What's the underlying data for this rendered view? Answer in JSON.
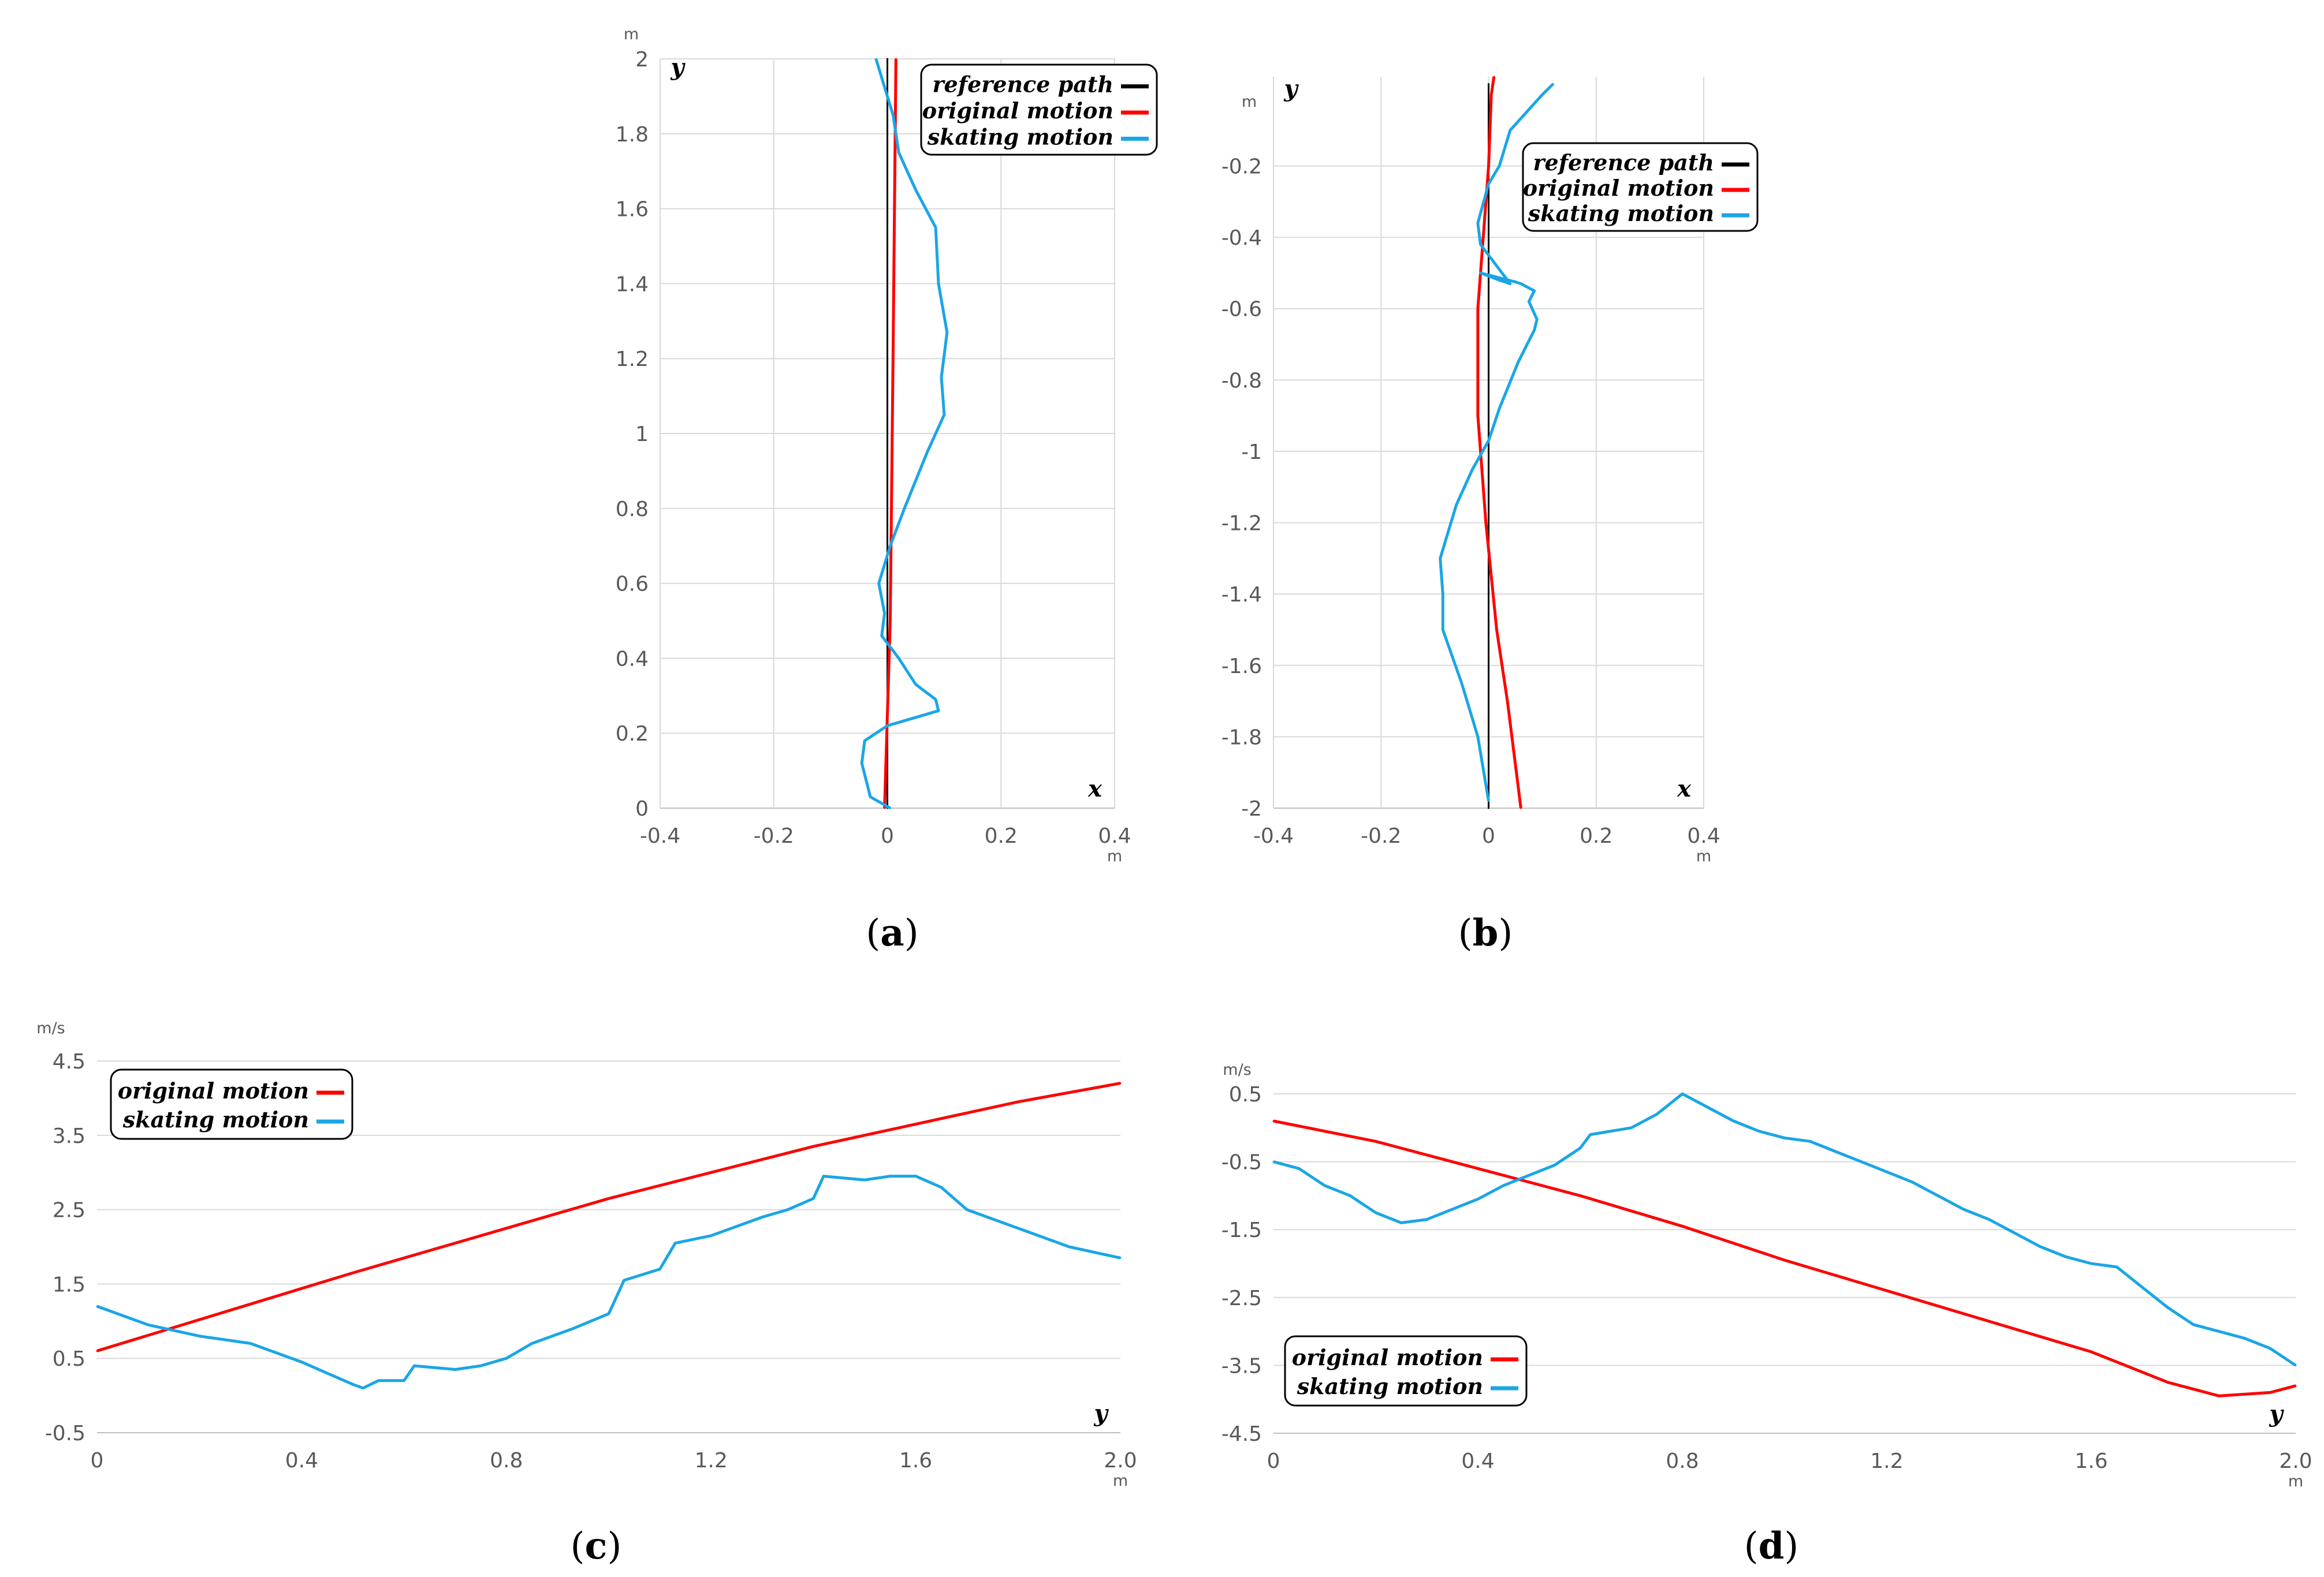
{
  "colors": {
    "reference": "#000000",
    "original": "#ff0000",
    "skating": "#1aa6e6",
    "grid": "#d9d9d9",
    "tick": "#595959"
  },
  "chart_data": [
    {
      "id": "a",
      "type": "line",
      "label": "a",
      "xlabel": "x",
      "ylabel": "y",
      "x_unit": "m",
      "y_unit": "m",
      "xlim": [
        -0.4,
        0.4
      ],
      "ylim": [
        0,
        2
      ],
      "xticks": [
        "-0.4",
        "-0.2",
        "0",
        "0.2",
        "0.4"
      ],
      "yticks": [
        "0",
        "0.2",
        "0.4",
        "0.6",
        "0.8",
        "1",
        "1.2",
        "1.4",
        "1.6",
        "1.8",
        "2"
      ],
      "legend_position": "top-right",
      "series": [
        {
          "name": "reference path",
          "color": "#000000",
          "points": [
            [
              0,
              0
            ],
            [
              0,
              2
            ]
          ]
        },
        {
          "name": "original motion",
          "color": "#ff0000",
          "points": [
            [
              -0.005,
              0
            ],
            [
              0.005,
              0.5
            ],
            [
              0.01,
              1.2
            ],
            [
              0.015,
              2
            ]
          ]
        },
        {
          "name": "skating motion",
          "color": "#1aa6e6",
          "points": [
            [
              0.005,
              0
            ],
            [
              -0.03,
              0.03
            ],
            [
              -0.045,
              0.12
            ],
            [
              -0.04,
              0.18
            ],
            [
              0.0,
              0.22
            ],
            [
              0.09,
              0.26
            ],
            [
              0.085,
              0.29
            ],
            [
              0.05,
              0.33
            ],
            [
              0.02,
              0.4
            ],
            [
              -0.01,
              0.46
            ],
            [
              -0.005,
              0.52
            ],
            [
              -0.015,
              0.6
            ],
            [
              0.005,
              0.7
            ],
            [
              0.03,
              0.8
            ],
            [
              0.07,
              0.95
            ],
            [
              0.1,
              1.05
            ],
            [
              0.095,
              1.15
            ],
            [
              0.105,
              1.27
            ],
            [
              0.09,
              1.4
            ],
            [
              0.085,
              1.55
            ],
            [
              0.05,
              1.65
            ],
            [
              0.02,
              1.75
            ],
            [
              0.01,
              1.85
            ],
            [
              -0.02,
              2.0
            ]
          ]
        }
      ]
    },
    {
      "id": "b",
      "type": "line",
      "label": "b",
      "xlabel": "x",
      "ylabel": "y",
      "x_unit": "m",
      "y_unit": "m",
      "xlim": [
        -0.4,
        0.4
      ],
      "ylim": [
        -2,
        0.05
      ],
      "xticks": [
        "-0.4",
        "-0.2",
        "0",
        "0.2",
        "0.4"
      ],
      "yticks": [
        "-2",
        "-1.8",
        "-1.6",
        "-1.4",
        "-1.2",
        "-1",
        "-0.8",
        "-0.6",
        "-0.4",
        "-0.2"
      ],
      "legend_position": "top-right",
      "series": [
        {
          "name": "reference path",
          "color": "#000000",
          "points": [
            [
              0,
              -2
            ],
            [
              0,
              0.03
            ]
          ]
        },
        {
          "name": "original motion",
          "color": "#ff0000",
          "points": [
            [
              0.06,
              -2
            ],
            [
              0.035,
              -1.7
            ],
            [
              0.015,
              -1.5
            ],
            [
              -0.005,
              -1.2
            ],
            [
              -0.02,
              -0.9
            ],
            [
              -0.02,
              -0.6
            ],
            [
              -0.01,
              -0.4
            ],
            [
              0.0,
              -0.2
            ],
            [
              0.005,
              0.0
            ],
            [
              0.01,
              0.05
            ]
          ]
        },
        {
          "name": "skating motion",
          "color": "#1aa6e6",
          "points": [
            [
              0,
              -1.98
            ],
            [
              -0.02,
              -1.8
            ],
            [
              -0.05,
              -1.65
            ],
            [
              -0.085,
              -1.5
            ],
            [
              -0.085,
              -1.4
            ],
            [
              -0.09,
              -1.3
            ],
            [
              -0.06,
              -1.15
            ],
            [
              -0.03,
              -1.05
            ],
            [
              0.0,
              -0.97
            ],
            [
              0.02,
              -0.88
            ],
            [
              0.055,
              -0.75
            ],
            [
              0.085,
              -0.66
            ],
            [
              0.09,
              -0.63
            ],
            [
              0.075,
              -0.58
            ],
            [
              0.085,
              -0.55
            ],
            [
              0.06,
              -0.53
            ],
            [
              0.05,
              -0.525
            ],
            [
              -0.015,
              -0.5
            ],
            [
              0.02,
              -0.52
            ],
            [
              0.04,
              -0.53
            ],
            [
              0.01,
              -0.47
            ],
            [
              -0.015,
              -0.42
            ],
            [
              -0.02,
              -0.36
            ],
            [
              0.0,
              -0.25
            ],
            [
              0.02,
              -0.2
            ],
            [
              0.04,
              -0.1
            ],
            [
              0.07,
              -0.05
            ],
            [
              0.1,
              0.0
            ],
            [
              0.12,
              0.03
            ]
          ]
        }
      ]
    },
    {
      "id": "c",
      "type": "line",
      "label": "c",
      "xlabel": "y",
      "x_unit": "m",
      "y_unit": "m/s",
      "xlim": [
        0,
        2.0
      ],
      "ylim": [
        -0.5,
        4.5
      ],
      "xticks": [
        "0",
        "0.4",
        "0.8",
        "1.2",
        "1.6",
        "2.0"
      ],
      "yticks": [
        "-0.5",
        "0.5",
        "1.5",
        "2.5",
        "3.5",
        "4.5"
      ],
      "legend_position": "top-left",
      "series": [
        {
          "name": "original motion",
          "color": "#ff0000",
          "points": [
            [
              0,
              0.6
            ],
            [
              0.5,
              1.65
            ],
            [
              1.0,
              2.65
            ],
            [
              1.4,
              3.35
            ],
            [
              1.8,
              3.95
            ],
            [
              2.0,
              4.2
            ]
          ]
        },
        {
          "name": "skating motion",
          "color": "#1aa6e6",
          "points": [
            [
              0,
              1.2
            ],
            [
              0.1,
              0.95
            ],
            [
              0.2,
              0.8
            ],
            [
              0.3,
              0.7
            ],
            [
              0.4,
              0.45
            ],
            [
              0.45,
              0.3
            ],
            [
              0.5,
              0.15
            ],
            [
              0.52,
              0.1
            ],
            [
              0.55,
              0.2
            ],
            [
              0.6,
              0.2
            ],
            [
              0.62,
              0.4
            ],
            [
              0.7,
              0.35
            ],
            [
              0.75,
              0.4
            ],
            [
              0.8,
              0.5
            ],
            [
              0.85,
              0.7
            ],
            [
              0.93,
              0.9
            ],
            [
              1.0,
              1.1
            ],
            [
              1.03,
              1.55
            ],
            [
              1.1,
              1.7
            ],
            [
              1.13,
              2.05
            ],
            [
              1.2,
              2.15
            ],
            [
              1.3,
              2.4
            ],
            [
              1.35,
              2.5
            ],
            [
              1.4,
              2.65
            ],
            [
              1.42,
              2.95
            ],
            [
              1.5,
              2.9
            ],
            [
              1.55,
              2.95
            ],
            [
              1.6,
              2.95
            ],
            [
              1.65,
              2.8
            ],
            [
              1.7,
              2.5
            ],
            [
              1.8,
              2.25
            ],
            [
              1.9,
              2.0
            ],
            [
              2.0,
              1.85
            ]
          ]
        }
      ]
    },
    {
      "id": "d",
      "type": "line",
      "label": "d",
      "xlabel": "y",
      "x_unit": "m",
      "y_unit": "m/s",
      "xlim": [
        0,
        2.0
      ],
      "ylim": [
        -4.5,
        0.5
      ],
      "xticks": [
        "0",
        "0.4",
        "0.8",
        "1.2",
        "1.6",
        "2.0"
      ],
      "yticks": [
        "-4.5",
        "-3.5",
        "-2.5",
        "-1.5",
        "-0.5",
        "0.5"
      ],
      "legend_position": "bottom-left",
      "series": [
        {
          "name": "original motion",
          "color": "#ff0000",
          "points": [
            [
              0,
              0.1
            ],
            [
              0.2,
              -0.2
            ],
            [
              0.4,
              -0.6
            ],
            [
              0.6,
              -1.0
            ],
            [
              0.8,
              -1.45
            ],
            [
              1.0,
              -1.95
            ],
            [
              1.2,
              -2.4
            ],
            [
              1.4,
              -2.85
            ],
            [
              1.6,
              -3.3
            ],
            [
              1.75,
              -3.75
            ],
            [
              1.85,
              -3.95
            ],
            [
              1.95,
              -3.9
            ],
            [
              2.0,
              -3.8
            ]
          ]
        },
        {
          "name": "skating motion",
          "color": "#1aa6e6",
          "points": [
            [
              0,
              -0.5
            ],
            [
              0.05,
              -0.6
            ],
            [
              0.1,
              -0.85
            ],
            [
              0.15,
              -1.0
            ],
            [
              0.2,
              -1.25
            ],
            [
              0.25,
              -1.4
            ],
            [
              0.3,
              -1.35
            ],
            [
              0.35,
              -1.2
            ],
            [
              0.4,
              -1.05
            ],
            [
              0.45,
              -0.85
            ],
            [
              0.5,
              -0.7
            ],
            [
              0.55,
              -0.55
            ],
            [
              0.6,
              -0.3
            ],
            [
              0.62,
              -0.1
            ],
            [
              0.7,
              0.0
            ],
            [
              0.75,
              0.2
            ],
            [
              0.8,
              0.5
            ],
            [
              0.85,
              0.3
            ],
            [
              0.9,
              0.1
            ],
            [
              0.95,
              -0.05
            ],
            [
              1.0,
              -0.15
            ],
            [
              1.05,
              -0.2
            ],
            [
              1.1,
              -0.35
            ],
            [
              1.15,
              -0.5
            ],
            [
              1.2,
              -0.65
            ],
            [
              1.25,
              -0.8
            ],
            [
              1.3,
              -1.0
            ],
            [
              1.35,
              -1.2
            ],
            [
              1.4,
              -1.35
            ],
            [
              1.45,
              -1.55
            ],
            [
              1.5,
              -1.75
            ],
            [
              1.55,
              -1.9
            ],
            [
              1.6,
              -2.0
            ],
            [
              1.65,
              -2.05
            ],
            [
              1.7,
              -2.35
            ],
            [
              1.75,
              -2.65
            ],
            [
              1.8,
              -2.9
            ],
            [
              1.85,
              -3.0
            ],
            [
              1.9,
              -3.1
            ],
            [
              1.95,
              -3.25
            ],
            [
              2.0,
              -3.5
            ]
          ]
        }
      ]
    }
  ]
}
